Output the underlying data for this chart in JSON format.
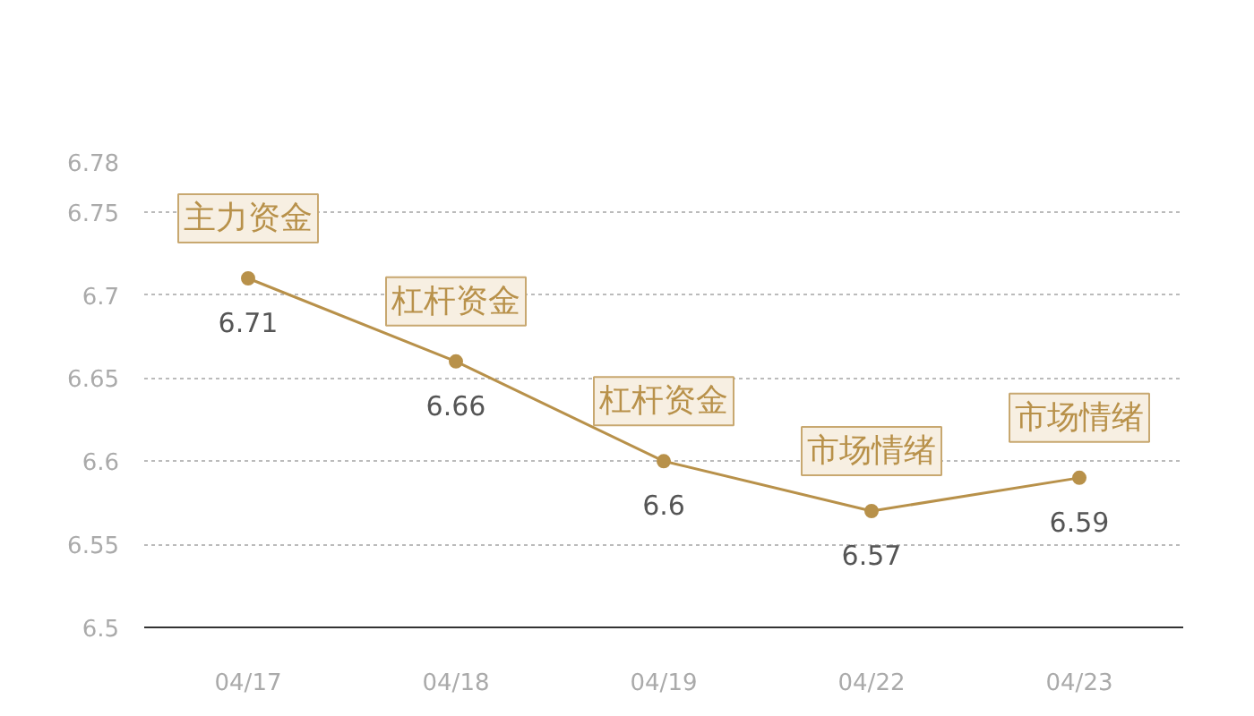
{
  "chart_data": {
    "type": "line",
    "categories": [
      "04/17",
      "04/18",
      "04/19",
      "04/22",
      "04/23"
    ],
    "series": [
      {
        "color": "#b8914a",
        "values": [
          6.71,
          6.66,
          6.6,
          6.57,
          6.59
        ]
      }
    ],
    "ylim": [
      6.5,
      6.78
    ],
    "yticks": [
      6.5,
      6.55,
      6.6,
      6.65,
      6.7,
      6.75,
      6.78
    ],
    "grid": "y",
    "data_labels": true,
    "marker": "circle",
    "line_style": "solid",
    "annotations": [
      {
        "text": "主力资金",
        "x": "04/17",
        "y": 6.71
      },
      {
        "text": "杠杆资金",
        "x": "04/18",
        "y": 6.66
      },
      {
        "text": "杠杆资金",
        "x": "04/19",
        "y": 6.6
      },
      {
        "text": "市场情绪",
        "x": "04/22",
        "y": 6.57
      },
      {
        "text": "市场情绪",
        "x": "04/23",
        "y": 6.59
      }
    ]
  }
}
